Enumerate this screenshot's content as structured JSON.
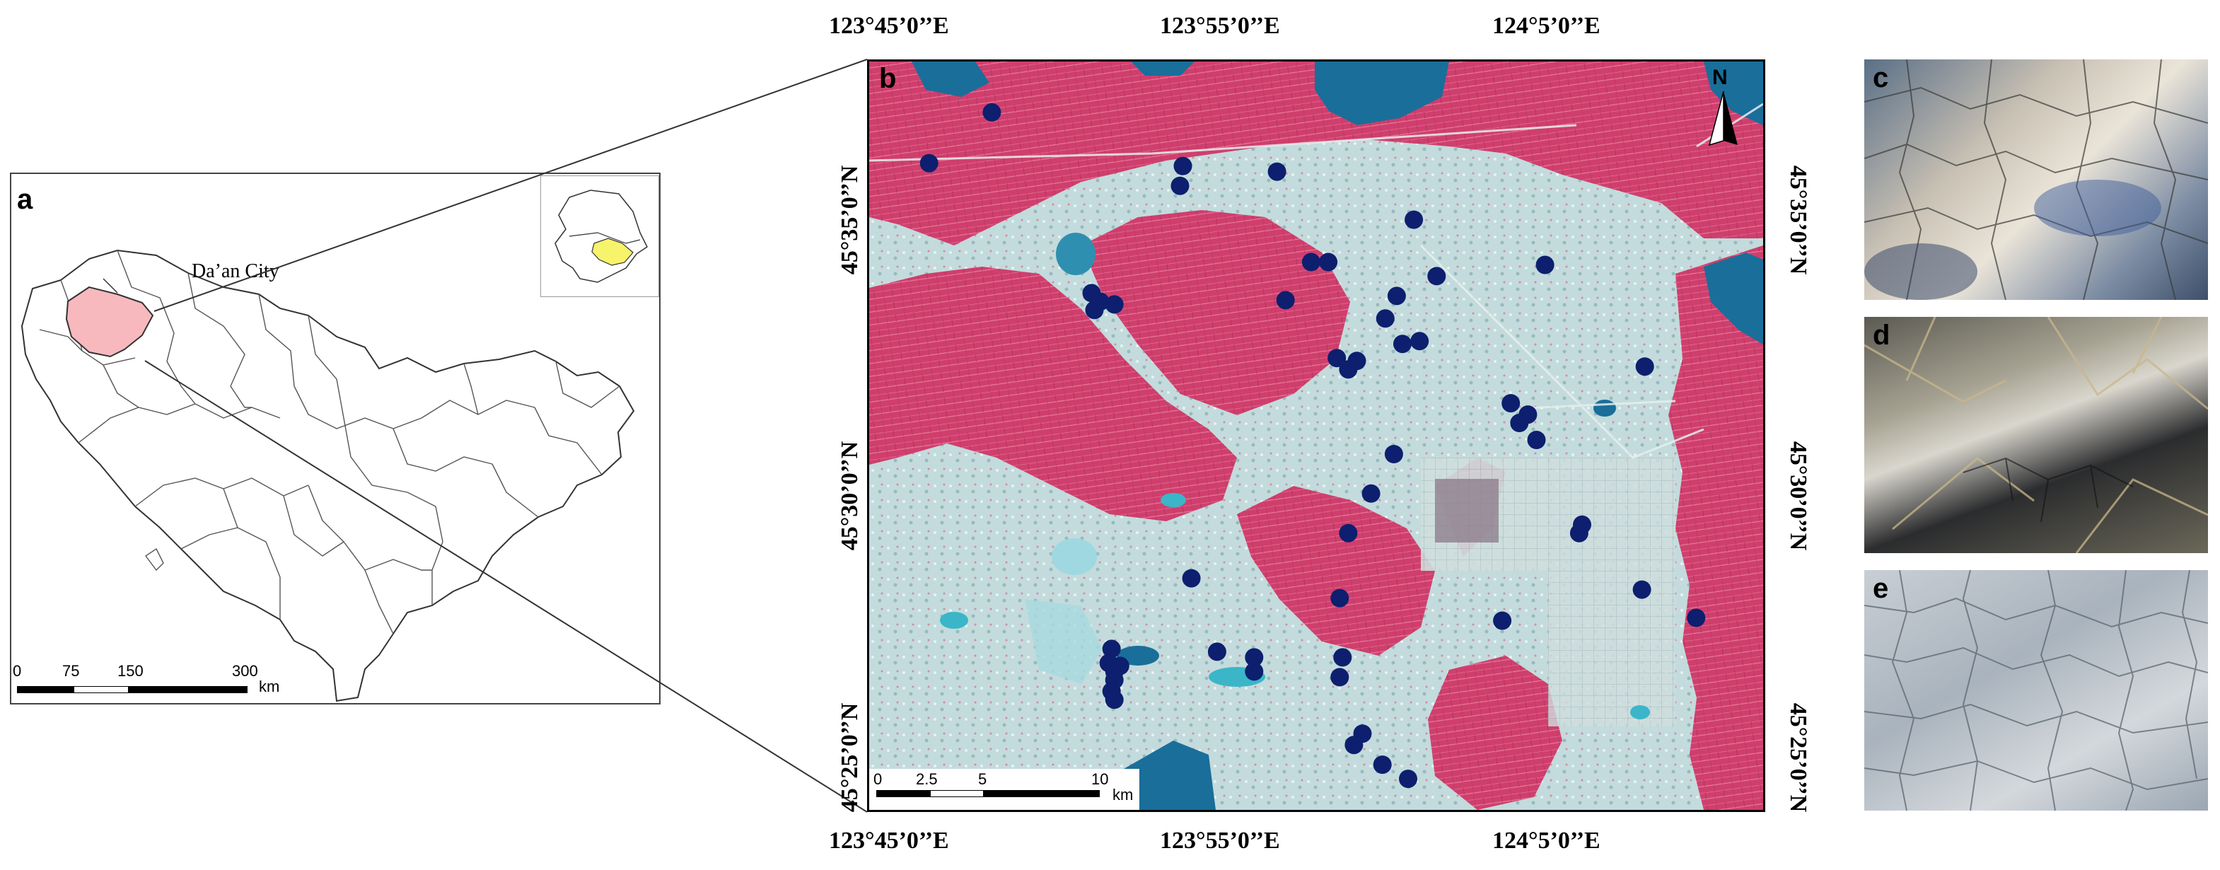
{
  "panel_a": {
    "letter": "a",
    "city_label": "Da’an City",
    "scale": {
      "ticks": [
        "0",
        "75",
        "150",
        "300"
      ],
      "unit": "km"
    }
  },
  "panel_b": {
    "letter": "b",
    "north_label": "N",
    "top_lon_labels": [
      "123°45’0’’E",
      "123°55’0’’E",
      "124°5’0’’E"
    ],
    "bottom_lon_labels": [
      "123°45’0’’E",
      "123°55’0’’E",
      "124°5’0’’E"
    ],
    "left_lat_labels": [
      "45°35’0’’N",
      "45°30’0’’N",
      "45°25’0’’N"
    ],
    "right_lat_labels": [
      "45°35’0’’N",
      "45°30’0’’N",
      "45°25’0’’N"
    ],
    "scale": {
      "ticks": [
        "0",
        "2.5",
        "5",
        "10"
      ],
      "unit": "km"
    },
    "sample_points_count": 61
  },
  "panel_c": {
    "letter": "c"
  },
  "panel_d": {
    "letter": "d"
  },
  "panel_e": {
    "letter": "e"
  },
  "colors": {
    "highlight_city": "#f7b9bd",
    "inset_province": "#f7f36a",
    "cropland": "#d0426f",
    "saline_land": "#bcd6d6",
    "water": "#1a6e9a",
    "sample_point": "#0d1f6e"
  }
}
